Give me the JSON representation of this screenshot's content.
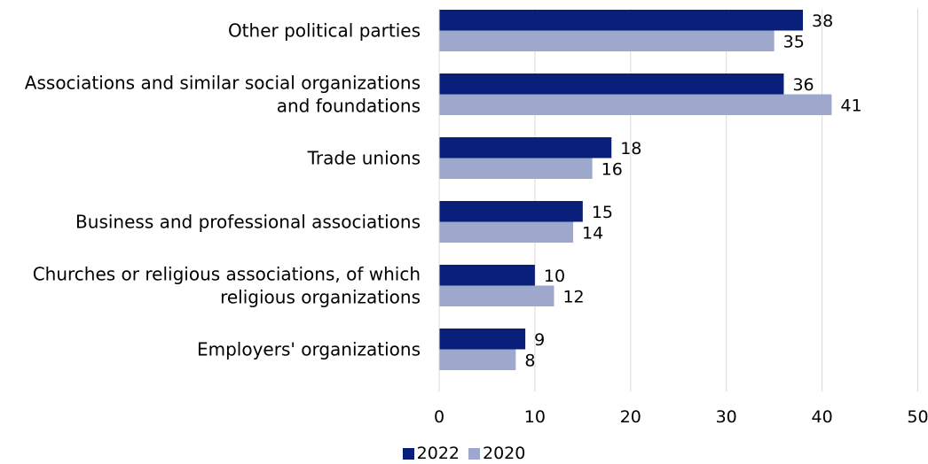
{
  "colors": {
    "series_2022": "#0a1f7a",
    "series_2020": "#9ea8cc",
    "grid": "#d9d9d9"
  },
  "chart_data": {
    "type": "bar",
    "orientation": "horizontal",
    "categories": [
      [
        "Other political parties"
      ],
      [
        "Associations and similar social organizations",
        "and foundations"
      ],
      [
        "Trade unions"
      ],
      [
        "Business and professional associations"
      ],
      [
        "Churches or religious associations, of which",
        "religious organizations"
      ],
      [
        "Employers' organizations"
      ]
    ],
    "series": [
      {
        "name": "2022",
        "values": [
          38,
          36,
          18,
          15,
          10,
          9
        ]
      },
      {
        "name": "2020",
        "values": [
          35,
          41,
          16,
          14,
          12,
          8
        ]
      }
    ],
    "xlim": [
      0,
      50
    ],
    "xticks": [
      0,
      10,
      20,
      30,
      40,
      50
    ],
    "grid": true,
    "legend_position": "bottom"
  }
}
